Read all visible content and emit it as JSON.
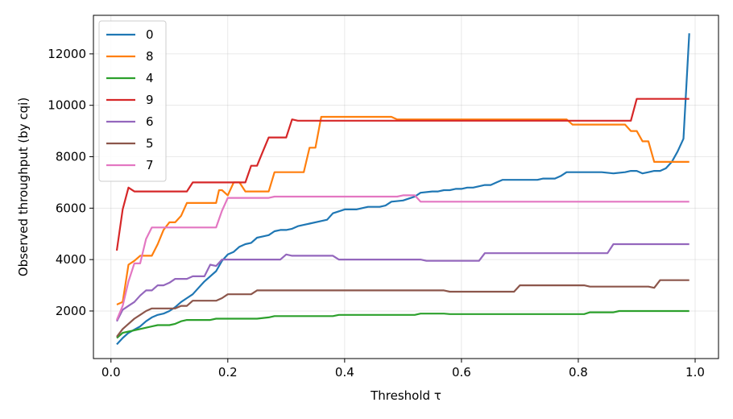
{
  "chart_data": {
    "type": "line",
    "xlabel": "Threshold τ",
    "ylabel": "Observed throughput (by cqi)",
    "xlim": [
      -0.03,
      1.04
    ],
    "ylim": [
      150,
      13500
    ],
    "xticks": [
      0.0,
      0.2,
      0.4,
      0.6,
      0.8,
      1.0
    ],
    "xtick_labels": [
      "0.0",
      "0.2",
      "0.4",
      "0.6",
      "0.8",
      "1.0"
    ],
    "yticks": [
      2000,
      4000,
      6000,
      8000,
      10000,
      12000
    ],
    "ytick_labels": [
      "2000",
      "4000",
      "6000",
      "8000",
      "10000",
      "12000"
    ],
    "grid": true,
    "legend_position": "top-left",
    "series": [
      {
        "name": "0",
        "color": "#1f77b4",
        "points": [
          [
            0.01,
            700
          ],
          [
            0.02,
            950
          ],
          [
            0.03,
            1150
          ],
          [
            0.05,
            1400
          ],
          [
            0.06,
            1600
          ],
          [
            0.07,
            1750
          ],
          [
            0.08,
            1850
          ],
          [
            0.09,
            1900
          ],
          [
            0.1,
            2000
          ],
          [
            0.11,
            2150
          ],
          [
            0.12,
            2350
          ],
          [
            0.13,
            2500
          ],
          [
            0.14,
            2650
          ],
          [
            0.15,
            2900
          ],
          [
            0.16,
            3150
          ],
          [
            0.17,
            3350
          ],
          [
            0.18,
            3550
          ],
          [
            0.19,
            3950
          ],
          [
            0.2,
            4200
          ],
          [
            0.21,
            4300
          ],
          [
            0.22,
            4500
          ],
          [
            0.23,
            4600
          ],
          [
            0.24,
            4650
          ],
          [
            0.25,
            4850
          ],
          [
            0.26,
            4900
          ],
          [
            0.27,
            4950
          ],
          [
            0.28,
            5100
          ],
          [
            0.29,
            5150
          ],
          [
            0.3,
            5150
          ],
          [
            0.31,
            5200
          ],
          [
            0.32,
            5300
          ],
          [
            0.33,
            5350
          ],
          [
            0.34,
            5400
          ],
          [
            0.36,
            5500
          ],
          [
            0.37,
            5550
          ],
          [
            0.38,
            5800
          ],
          [
            0.4,
            5950
          ],
          [
            0.42,
            5950
          ],
          [
            0.43,
            6000
          ],
          [
            0.44,
            6050
          ],
          [
            0.46,
            6050
          ],
          [
            0.47,
            6100
          ],
          [
            0.48,
            6250
          ],
          [
            0.5,
            6300
          ],
          [
            0.52,
            6450
          ],
          [
            0.53,
            6600
          ],
          [
            0.55,
            6650
          ],
          [
            0.56,
            6650
          ],
          [
            0.57,
            6700
          ],
          [
            0.58,
            6700
          ],
          [
            0.59,
            6750
          ],
          [
            0.6,
            6750
          ],
          [
            0.61,
            6800
          ],
          [
            0.62,
            6800
          ],
          [
            0.63,
            6850
          ],
          [
            0.64,
            6900
          ],
          [
            0.65,
            6900
          ],
          [
            0.66,
            7000
          ],
          [
            0.67,
            7100
          ],
          [
            0.68,
            7100
          ],
          [
            0.69,
            7100
          ],
          [
            0.7,
            7100
          ],
          [
            0.71,
            7100
          ],
          [
            0.72,
            7100
          ],
          [
            0.73,
            7100
          ],
          [
            0.74,
            7150
          ],
          [
            0.75,
            7150
          ],
          [
            0.76,
            7150
          ],
          [
            0.77,
            7250
          ],
          [
            0.78,
            7400
          ],
          [
            0.8,
            7400
          ],
          [
            0.82,
            7400
          ],
          [
            0.84,
            7400
          ],
          [
            0.86,
            7350
          ],
          [
            0.88,
            7400
          ],
          [
            0.89,
            7450
          ],
          [
            0.9,
            7450
          ],
          [
            0.91,
            7350
          ],
          [
            0.92,
            7400
          ],
          [
            0.93,
            7450
          ],
          [
            0.94,
            7450
          ],
          [
            0.95,
            7550
          ],
          [
            0.96,
            7800
          ],
          [
            0.97,
            8200
          ],
          [
            0.98,
            8700
          ],
          [
            0.99,
            12800
          ]
        ]
      },
      {
        "name": "8",
        "color": "#ff7f0e",
        "points": [
          [
            0.01,
            2250
          ],
          [
            0.02,
            2350
          ],
          [
            0.03,
            3800
          ],
          [
            0.04,
            3950
          ],
          [
            0.05,
            4150
          ],
          [
            0.07,
            4150
          ],
          [
            0.08,
            4600
          ],
          [
            0.09,
            5150
          ],
          [
            0.1,
            5450
          ],
          [
            0.11,
            5450
          ],
          [
            0.12,
            5700
          ],
          [
            0.13,
            6200
          ],
          [
            0.18,
            6200
          ],
          [
            0.185,
            6700
          ],
          [
            0.19,
            6700
          ],
          [
            0.2,
            6500
          ],
          [
            0.21,
            7000
          ],
          [
            0.22,
            7000
          ],
          [
            0.23,
            6650
          ],
          [
            0.27,
            6650
          ],
          [
            0.28,
            7400
          ],
          [
            0.33,
            7400
          ],
          [
            0.34,
            8350
          ],
          [
            0.35,
            8350
          ],
          [
            0.36,
            9550
          ],
          [
            0.48,
            9550
          ],
          [
            0.49,
            9450
          ],
          [
            0.78,
            9450
          ],
          [
            0.79,
            9250
          ],
          [
            0.88,
            9250
          ],
          [
            0.89,
            9000
          ],
          [
            0.9,
            9000
          ],
          [
            0.91,
            8600
          ],
          [
            0.92,
            8600
          ],
          [
            0.93,
            7800
          ],
          [
            0.99,
            7800
          ]
        ]
      },
      {
        "name": "4",
        "color": "#2ca02c",
        "points": [
          [
            0.01,
            950
          ],
          [
            0.02,
            1150
          ],
          [
            0.03,
            1200
          ],
          [
            0.04,
            1250
          ],
          [
            0.05,
            1300
          ],
          [
            0.06,
            1350
          ],
          [
            0.07,
            1400
          ],
          [
            0.08,
            1450
          ],
          [
            0.1,
            1450
          ],
          [
            0.11,
            1500
          ],
          [
            0.12,
            1600
          ],
          [
            0.13,
            1650
          ],
          [
            0.17,
            1650
          ],
          [
            0.18,
            1700
          ],
          [
            0.25,
            1700
          ],
          [
            0.27,
            1750
          ],
          [
            0.28,
            1800
          ],
          [
            0.38,
            1800
          ],
          [
            0.39,
            1850
          ],
          [
            0.52,
            1850
          ],
          [
            0.53,
            1900
          ],
          [
            0.57,
            1900
          ],
          [
            0.58,
            1880
          ],
          [
            0.81,
            1880
          ],
          [
            0.82,
            1950
          ],
          [
            0.86,
            1950
          ],
          [
            0.87,
            2000
          ],
          [
            0.99,
            2000
          ]
        ]
      },
      {
        "name": "9",
        "color": "#d62728",
        "points": [
          [
            0.01,
            4350
          ],
          [
            0.02,
            5950
          ],
          [
            0.03,
            6800
          ],
          [
            0.04,
            6650
          ],
          [
            0.13,
            6650
          ],
          [
            0.14,
            7000
          ],
          [
            0.23,
            7000
          ],
          [
            0.24,
            7650
          ],
          [
            0.25,
            7650
          ],
          [
            0.26,
            8200
          ],
          [
            0.27,
            8750
          ],
          [
            0.3,
            8750
          ],
          [
            0.31,
            9450
          ],
          [
            0.32,
            9400
          ],
          [
            0.89,
            9400
          ],
          [
            0.9,
            10250
          ],
          [
            0.99,
            10250
          ]
        ]
      },
      {
        "name": "6",
        "color": "#9467bd",
        "points": [
          [
            0.01,
            1600
          ],
          [
            0.02,
            2050
          ],
          [
            0.03,
            2200
          ],
          [
            0.04,
            2350
          ],
          [
            0.05,
            2600
          ],
          [
            0.06,
            2800
          ],
          [
            0.07,
            2800
          ],
          [
            0.08,
            3000
          ],
          [
            0.09,
            3000
          ],
          [
            0.1,
            3100
          ],
          [
            0.11,
            3250
          ],
          [
            0.13,
            3250
          ],
          [
            0.14,
            3350
          ],
          [
            0.16,
            3350
          ],
          [
            0.17,
            3800
          ],
          [
            0.18,
            3750
          ],
          [
            0.19,
            4000
          ],
          [
            0.29,
            4000
          ],
          [
            0.3,
            4200
          ],
          [
            0.31,
            4150
          ],
          [
            0.38,
            4150
          ],
          [
            0.39,
            4000
          ],
          [
            0.53,
            4000
          ],
          [
            0.54,
            3950
          ],
          [
            0.63,
            3950
          ],
          [
            0.64,
            4250
          ],
          [
            0.85,
            4250
          ],
          [
            0.86,
            4600
          ],
          [
            0.99,
            4600
          ]
        ]
      },
      {
        "name": "5",
        "color": "#8c564b",
        "points": [
          [
            0.01,
            1000
          ],
          [
            0.02,
            1300
          ],
          [
            0.03,
            1500
          ],
          [
            0.04,
            1700
          ],
          [
            0.05,
            1850
          ],
          [
            0.06,
            2000
          ],
          [
            0.07,
            2100
          ],
          [
            0.11,
            2100
          ],
          [
            0.12,
            2200
          ],
          [
            0.13,
            2200
          ],
          [
            0.14,
            2400
          ],
          [
            0.18,
            2400
          ],
          [
            0.19,
            2500
          ],
          [
            0.2,
            2650
          ],
          [
            0.24,
            2650
          ],
          [
            0.25,
            2800
          ],
          [
            0.57,
            2800
          ],
          [
            0.58,
            2750
          ],
          [
            0.69,
            2750
          ],
          [
            0.7,
            3000
          ],
          [
            0.81,
            3000
          ],
          [
            0.82,
            2950
          ],
          [
            0.92,
            2950
          ],
          [
            0.93,
            2900
          ],
          [
            0.94,
            3200
          ],
          [
            0.99,
            3200
          ]
        ]
      },
      {
        "name": "7",
        "color": "#e377c2",
        "points": [
          [
            0.01,
            1650
          ],
          [
            0.02,
            2200
          ],
          [
            0.03,
            3150
          ],
          [
            0.04,
            3850
          ],
          [
            0.05,
            3850
          ],
          [
            0.06,
            4800
          ],
          [
            0.07,
            5250
          ],
          [
            0.18,
            5250
          ],
          [
            0.19,
            5900
          ],
          [
            0.2,
            6400
          ],
          [
            0.27,
            6400
          ],
          [
            0.28,
            6450
          ],
          [
            0.49,
            6450
          ],
          [
            0.5,
            6500
          ],
          [
            0.52,
            6500
          ],
          [
            0.53,
            6250
          ],
          [
            0.99,
            6250
          ]
        ]
      }
    ]
  }
}
